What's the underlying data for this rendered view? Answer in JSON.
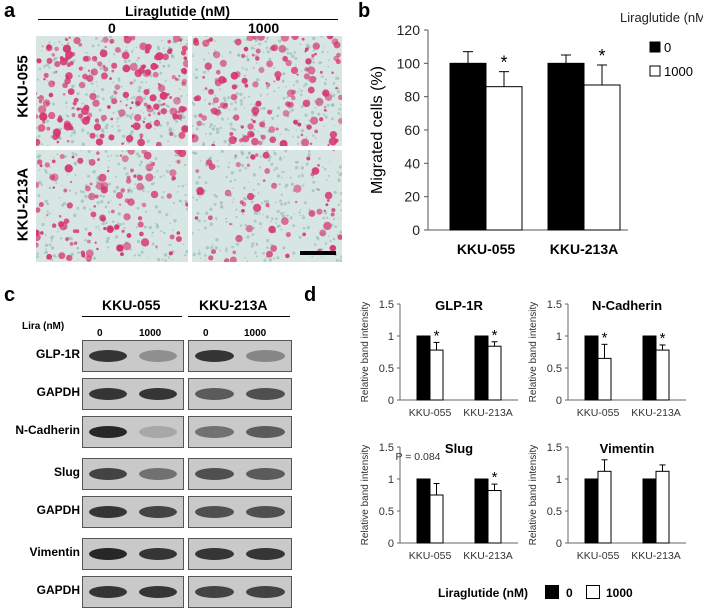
{
  "panel_a": {
    "label": "a",
    "header": "Liraglutide (nM)",
    "columns": [
      "0",
      "1000"
    ],
    "rows": [
      "KKU-055",
      "KKU-213A"
    ]
  },
  "panel_b": {
    "label": "b"
  },
  "panel_c": {
    "label": "c",
    "cell_lines": [
      "KKU-055",
      "KKU-213A"
    ],
    "lira_label": "Lira (nM)",
    "doses": [
      "0",
      "1000",
      "0",
      "1000"
    ],
    "blots": [
      {
        "name": "GLP-1R",
        "a": [
          0.85,
          0.45
        ],
        "b": [
          0.85,
          0.5
        ]
      },
      {
        "name": "GAPDH",
        "a": [
          0.85,
          0.85
        ],
        "b": [
          0.7,
          0.75
        ]
      },
      {
        "name": "N-Cadherin",
        "a": [
          0.9,
          0.3
        ],
        "b": [
          0.6,
          0.7
        ]
      },
      {
        "name": "Slug",
        "a": [
          0.8,
          0.6
        ],
        "b": [
          0.75,
          0.7
        ]
      },
      {
        "name": "GAPDH",
        "a": [
          0.85,
          0.8
        ],
        "b": [
          0.75,
          0.75
        ]
      },
      {
        "name": "Vimentin",
        "a": [
          0.9,
          0.85
        ],
        "b": [
          0.85,
          0.85
        ]
      },
      {
        "name": "GAPDH",
        "a": [
          0.85,
          0.85
        ],
        "b": [
          0.8,
          0.8
        ]
      }
    ]
  },
  "panel_d": {
    "label": "d"
  },
  "colors": {
    "control": "#000000",
    "treated": "#ffffff",
    "stain": "#d6336c",
    "background_stain": "#b9d6cf"
  },
  "chart_data": [
    {
      "type": "bar",
      "panel": "b",
      "title": "",
      "categories": [
        "KKU-055",
        "KKU-213A"
      ],
      "ylabel": "Migrated cells (%)",
      "ylim": [
        0,
        120
      ],
      "yticks": [
        "0",
        "20",
        "40",
        "60",
        "80",
        "100",
        "120"
      ],
      "legend_title": "Liraglutide (nM)",
      "legend": "right",
      "series": [
        {
          "name": "0",
          "values": [
            100,
            100
          ],
          "errors": [
            7,
            5
          ]
        },
        {
          "name": "1000",
          "values": [
            86,
            87
          ],
          "errors": [
            9,
            12
          ]
        }
      ],
      "annotations": [
        "*",
        "*"
      ]
    },
    {
      "type": "bar",
      "panel": "d",
      "title": "GLP-1R",
      "categories": [
        "KKU-055",
        "KKU-213A"
      ],
      "ylabel": "Relative band intensity",
      "ylim": [
        0,
        1.5
      ],
      "yticks": [
        "0",
        "0.5",
        "1",
        "1.5"
      ],
      "series": [
        {
          "name": "0",
          "values": [
            1.0,
            1.0
          ],
          "errors": [
            0,
            0
          ]
        },
        {
          "name": "1000",
          "values": [
            0.78,
            0.84
          ],
          "errors": [
            0.12,
            0.07
          ]
        }
      ],
      "annotations": [
        "*",
        "*"
      ]
    },
    {
      "type": "bar",
      "panel": "d",
      "title": "N-Cadherin",
      "categories": [
        "KKU-055",
        "KKU-213A"
      ],
      "ylabel": "Relative band intensity",
      "ylim": [
        0,
        1.5
      ],
      "yticks": [
        "0",
        "0.5",
        "1",
        "1.5"
      ],
      "series": [
        {
          "name": "0",
          "values": [
            1.0,
            1.0
          ],
          "errors": [
            0,
            0
          ]
        },
        {
          "name": "1000",
          "values": [
            0.65,
            0.78
          ],
          "errors": [
            0.22,
            0.08
          ]
        }
      ],
      "annotations": [
        "*",
        "*"
      ]
    },
    {
      "type": "bar",
      "panel": "d",
      "title": "Slug",
      "categories": [
        "KKU-055",
        "KKU-213A"
      ],
      "ylabel": "Relative band intensity",
      "ylim": [
        0,
        1.5
      ],
      "yticks": [
        "0",
        "0.5",
        "1",
        "1.5"
      ],
      "series": [
        {
          "name": "0",
          "values": [
            1.0,
            1.0
          ],
          "errors": [
            0,
            0
          ]
        },
        {
          "name": "1000",
          "values": [
            0.75,
            0.82
          ],
          "errors": [
            0.18,
            0.1
          ]
        }
      ],
      "annotations": [
        "P = 0.084",
        "*"
      ]
    },
    {
      "type": "bar",
      "panel": "d",
      "title": "Vimentin",
      "categories": [
        "KKU-055",
        "KKU-213A"
      ],
      "ylabel": "Relative band intensity",
      "ylim": [
        0,
        1.5
      ],
      "yticks": [
        "0",
        "0.5",
        "1",
        "1.5"
      ],
      "series": [
        {
          "name": "0",
          "values": [
            1.0,
            1.0
          ],
          "errors": [
            0,
            0
          ]
        },
        {
          "name": "1000",
          "values": [
            1.12,
            1.12
          ],
          "errors": [
            0.18,
            0.1
          ]
        }
      ],
      "annotations": [
        "",
        ""
      ]
    }
  ],
  "bottom_legend": {
    "title": "Liraglutide (nM)",
    "items": [
      "0",
      "1000"
    ]
  }
}
